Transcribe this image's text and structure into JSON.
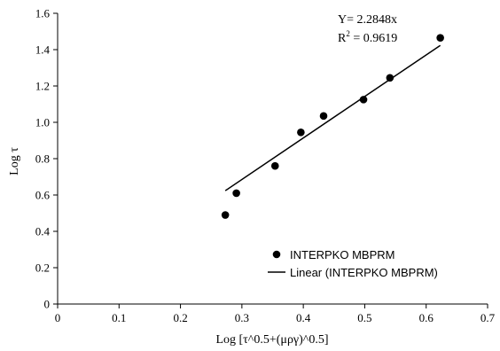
{
  "chart_data": {
    "type": "scatter",
    "xlabel": "Log [τ^0.5+(μργ)^0.5]",
    "ylabel": "Log τ",
    "xlim": [
      0,
      0.7
    ],
    "ylim": [
      0,
      1.6
    ],
    "x_ticks": [
      "0",
      "0.1",
      "0.2",
      "0.3",
      "0.4",
      "0.5",
      "0.6",
      "0.7"
    ],
    "y_ticks": [
      "0",
      "0.2",
      "0.4",
      "0.6",
      "0.8",
      "1.0",
      "1.2",
      "1.4",
      "1.6"
    ],
    "grid": false,
    "series": [
      {
        "name": "INTERPKO MBPRM",
        "kind": "scatter",
        "color": "#000000",
        "x": [
          0.273,
          0.291,
          0.354,
          0.396,
          0.433,
          0.498,
          0.541,
          0.623
        ],
        "y": [
          0.49,
          0.61,
          0.76,
          0.945,
          1.035,
          1.125,
          1.245,
          1.465
        ]
      },
      {
        "name": "Linear  (INTERPKO MBPRM)",
        "kind": "line",
        "color": "#000000",
        "slope": 2.2848,
        "x_range": [
          0.273,
          0.623
        ]
      }
    ],
    "annotations": {
      "equation": "Y= 2.2848x",
      "r2_prefix": "R",
      "r2_sup": "2",
      "r2_value": " = 0.9619"
    },
    "legend_position": "bottom-right"
  }
}
